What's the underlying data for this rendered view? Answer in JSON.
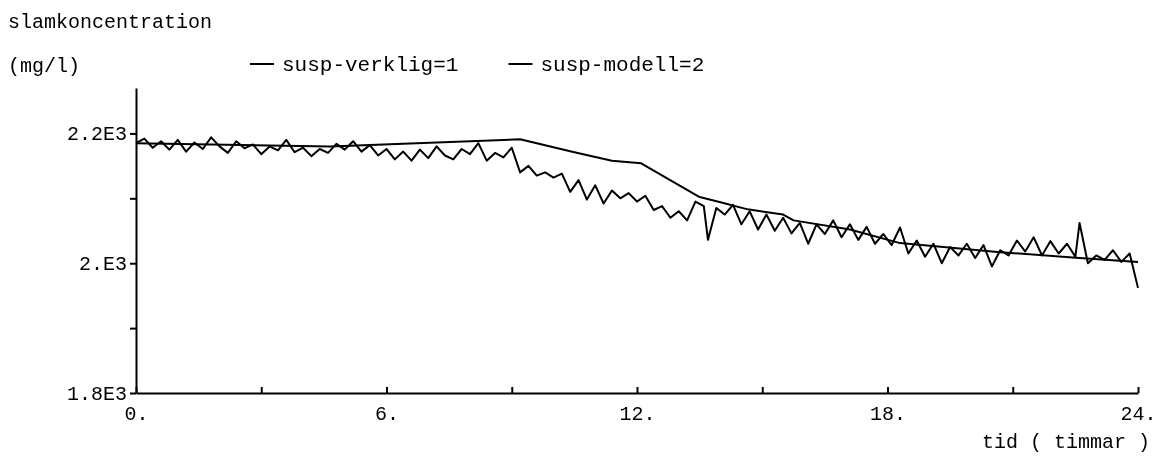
{
  "chart_data": {
    "type": "line",
    "ylabel": "slamkoncentration\n(mg/l)",
    "xlabel": "tid ( timmar )",
    "legend": "top",
    "line_style": "solid",
    "marker": "none",
    "grid": false,
    "xlim": [
      0,
      24
    ],
    "xticks": [
      {
        "value": 0,
        "label": "0."
      },
      {
        "value": 3,
        "label": null
      },
      {
        "value": 6,
        "label": "6."
      },
      {
        "value": 9,
        "label": null
      },
      {
        "value": 12,
        "label": "12."
      },
      {
        "value": 15,
        "label": null
      },
      {
        "value": 18,
        "label": "18."
      },
      {
        "value": 21,
        "label": null
      },
      {
        "value": 24,
        "label": "24."
      }
    ],
    "ylim": [
      1800,
      2270
    ],
    "yticks": [
      {
        "value": 1800,
        "label": "1.8E3"
      },
      {
        "value": 1900,
        "label": null
      },
      {
        "value": 2000,
        "label": "2.E3"
      },
      {
        "value": 2100,
        "label": null
      },
      {
        "value": 2200,
        "label": "2.2E3"
      }
    ],
    "series": [
      {
        "name": "susp-verklig=1",
        "color": "#000000",
        "x": [
          0,
          0.2,
          0.4,
          0.6,
          0.8,
          1,
          1.2,
          1.4,
          1.6,
          1.8,
          2,
          2.2,
          2.4,
          2.6,
          2.8,
          3,
          3.2,
          3.4,
          3.6,
          3.8,
          4,
          4.2,
          4.4,
          4.6,
          4.8,
          5,
          5.2,
          5.4,
          5.6,
          5.8,
          6,
          6.2,
          6.4,
          6.6,
          6.8,
          7,
          7.2,
          7.4,
          7.6,
          7.8,
          8,
          8.2,
          8.4,
          8.6,
          8.8,
          9,
          9.2,
          9.4,
          9.6,
          9.8,
          10,
          10.2,
          10.4,
          10.6,
          10.8,
          11,
          11.2,
          11.4,
          11.6,
          11.8,
          12,
          12.2,
          12.4,
          12.6,
          12.8,
          13,
          13.2,
          13.4,
          13.6,
          13.7,
          13.9,
          14.1,
          14.3,
          14.5,
          14.7,
          14.9,
          15.1,
          15.3,
          15.5,
          15.7,
          15.9,
          16.1,
          16.3,
          16.5,
          16.7,
          16.9,
          17.1,
          17.3,
          17.5,
          17.7,
          17.9,
          18.1,
          18.3,
          18.5,
          18.7,
          18.9,
          19.1,
          19.3,
          19.5,
          19.7,
          19.9,
          20.1,
          20.3,
          20.5,
          20.7,
          20.9,
          21.1,
          21.3,
          21.5,
          21.7,
          21.9,
          22.1,
          22.3,
          22.5,
          22.6,
          22.8,
          23,
          23.2,
          23.4,
          23.6,
          23.8,
          24
        ],
        "values": [
          2185,
          2192,
          2178,
          2188,
          2175,
          2190,
          2172,
          2186,
          2176,
          2194,
          2180,
          2170,
          2188,
          2177,
          2183,
          2168,
          2180,
          2174,
          2190,
          2171,
          2178,
          2165,
          2176,
          2170,
          2184,
          2175,
          2188,
          2172,
          2182,
          2166,
          2176,
          2160,
          2172,
          2158,
          2175,
          2162,
          2180,
          2166,
          2160,
          2176,
          2168,
          2185,
          2158,
          2170,
          2163,
          2178,
          2140,
          2150,
          2135,
          2140,
          2132,
          2138,
          2110,
          2128,
          2098,
          2120,
          2092,
          2112,
          2100,
          2108,
          2095,
          2104,
          2082,
          2088,
          2070,
          2080,
          2066,
          2095,
          2088,
          2036,
          2085,
          2075,
          2090,
          2060,
          2080,
          2052,
          2075,
          2050,
          2070,
          2046,
          2062,
          2030,
          2060,
          2045,
          2066,
          2040,
          2060,
          2036,
          2056,
          2030,
          2045,
          2028,
          2055,
          2015,
          2035,
          2010,
          2030,
          2000,
          2025,
          2012,
          2030,
          2008,
          2028,
          1995,
          2020,
          2012,
          2035,
          2018,
          2040,
          2012,
          2034,
          2015,
          2030,
          2010,
          2062,
          2000,
          2012,
          2005,
          2020,
          2002,
          2015,
          1962
        ]
      },
      {
        "name": "susp-modell=2",
        "color": "#000000",
        "x": [
          0,
          4.65,
          9.2,
          10.5,
          11.4,
          12.1,
          13.5,
          14,
          14.65,
          15.5,
          15.75,
          17.1,
          18.3,
          20.7,
          22.6,
          24
        ],
        "values": [
          2185,
          2180,
          2191,
          2171,
          2158,
          2154,
          2102,
          2094,
          2083,
          2075,
          2066,
          2052,
          2031,
          2017,
          2008,
          2002
        ]
      }
    ]
  }
}
